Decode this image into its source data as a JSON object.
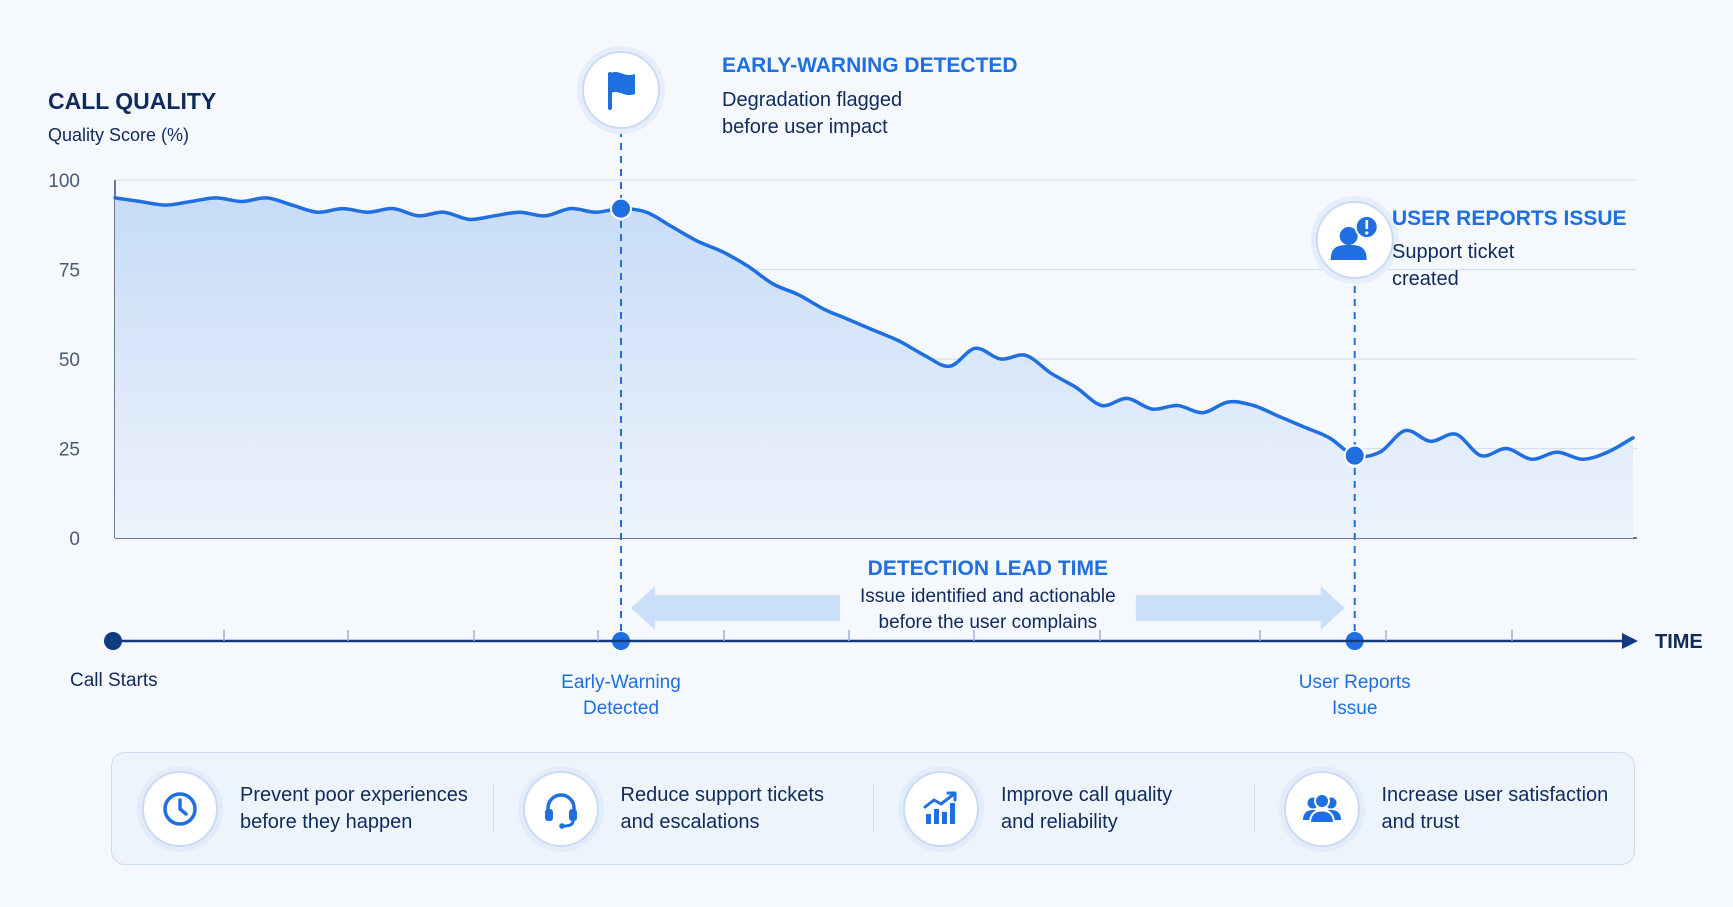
{
  "chart_data": {
    "type": "area",
    "title": "CALL QUALITY",
    "ylabel": "Quality Score (%)",
    "xlabel": "TIME",
    "ylim": [
      0,
      100
    ],
    "yticks": [
      "100",
      "75",
      "50",
      "25",
      "0"
    ],
    "ytick_values": [
      100,
      75,
      50,
      25,
      0
    ],
    "grid": true,
    "x": [
      0,
      1,
      2,
      3,
      4,
      5,
      6,
      7,
      8,
      9,
      10,
      11,
      12,
      13,
      14,
      15,
      16,
      17,
      18,
      19,
      20,
      21,
      22,
      23,
      24,
      25,
      26,
      27,
      28,
      29,
      30,
      31,
      32,
      33,
      34,
      35,
      36,
      37,
      38,
      39,
      40,
      41,
      42,
      43,
      44,
      45,
      46,
      47,
      48,
      49,
      50,
      51,
      52,
      53,
      54,
      55,
      56,
      57,
      58,
      59,
      60
    ],
    "series": [
      {
        "values": [
          95,
          94,
          93,
          94,
          95,
          94,
          95,
          93,
          91,
          92,
          91,
          92,
          90,
          91,
          89,
          90,
          91,
          90,
          92,
          91,
          92,
          91,
          87,
          83,
          80,
          76,
          71,
          68,
          64,
          61,
          58,
          55,
          51,
          48,
          53,
          50,
          51,
          46,
          42,
          37,
          39,
          36,
          37,
          35,
          38,
          37,
          34,
          31,
          28,
          23,
          24,
          30,
          27,
          29,
          23,
          25,
          22,
          24,
          22,
          24,
          28
        ]
      }
    ],
    "events": [
      {
        "x": 20,
        "value": 92,
        "heading": "EARLY-WARNING DETECTED",
        "detail": "Degradation flagged\nbefore user impact",
        "timeline_label": "Early-Warning\nDetected",
        "icon": "flag-icon"
      },
      {
        "x": 49,
        "value": 23,
        "heading": "USER REPORTS ISSUE",
        "detail": "Support ticket\ncreated",
        "timeline_label": "User Reports\nIssue",
        "icon": "user-alert-icon"
      }
    ],
    "start_label": "Call Starts",
    "lead_time": {
      "title": "DETECTION LEAD TIME",
      "text": "Issue identified and actionable\nbefore the user complains"
    }
  },
  "benefits": [
    {
      "icon": "clock-icon",
      "text": "Prevent poor experiences\nbefore they happen"
    },
    {
      "icon": "headset-icon",
      "text": "Reduce support tickets\nand escalations"
    },
    {
      "icon": "chart-growth-icon",
      "text": "Improve call quality\nand reliability"
    },
    {
      "icon": "users-icon",
      "text": "Increase user satisfaction\nand trust"
    }
  ],
  "colors": {
    "primary": "#1f6fe0",
    "navy": "#0f2a5c",
    "area_top": "#c7dcf7",
    "area_bottom": "#edf3fc",
    "grid": "#d3e0f0",
    "background": "#f5f8fc"
  }
}
